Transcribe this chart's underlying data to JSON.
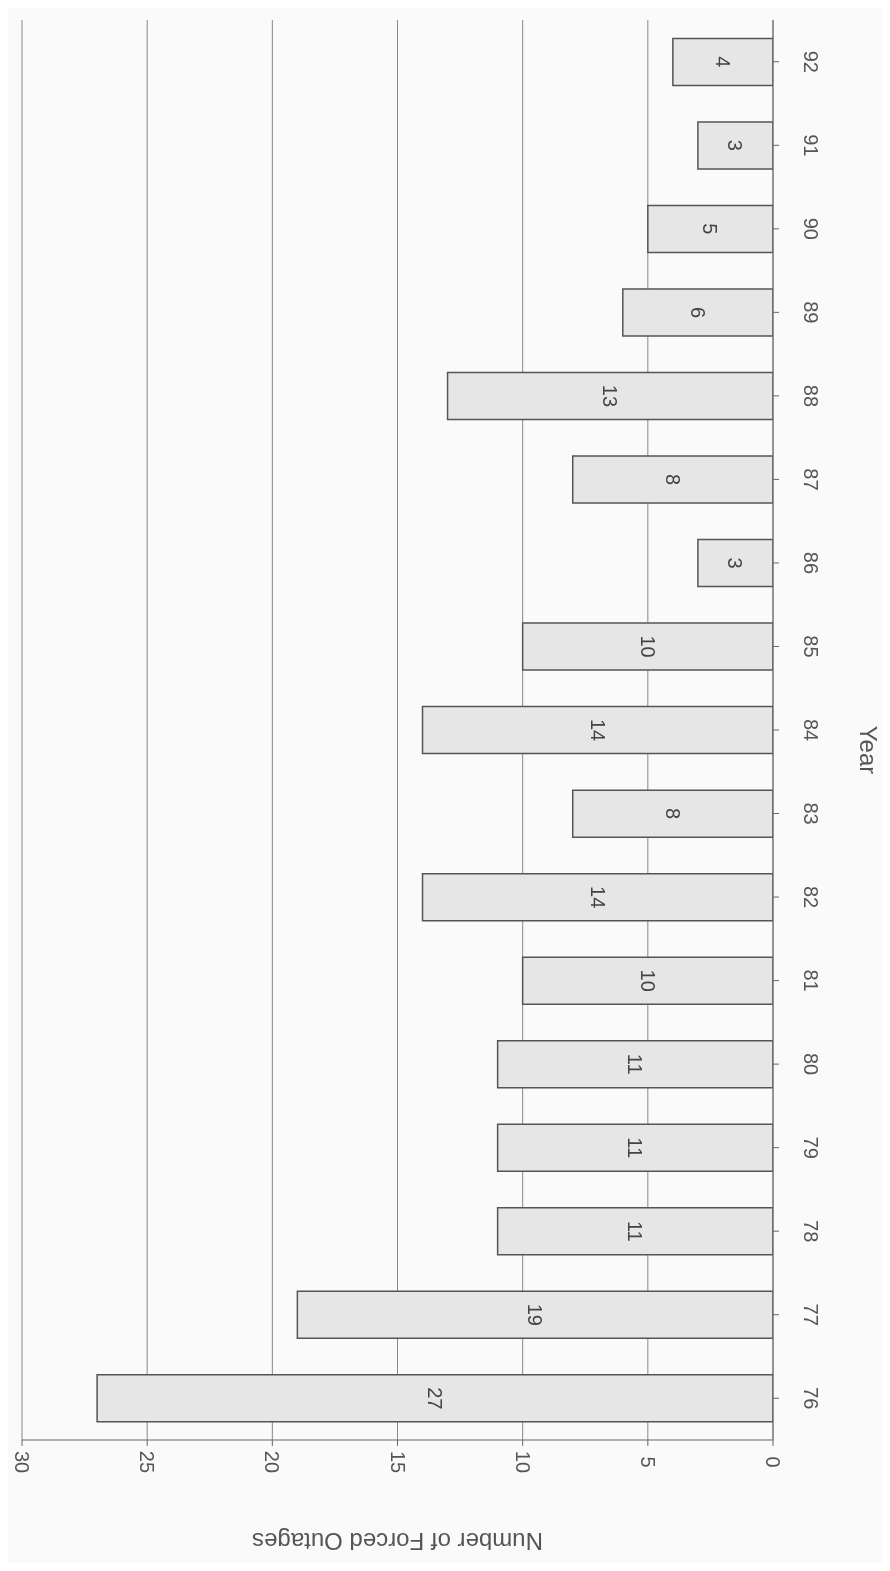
{
  "chart_data": {
    "type": "bar",
    "orientation": "horizontal",
    "xlabel": "Number of Forced Outages",
    "ylabel": "Year",
    "categories": [
      "92",
      "91",
      "90",
      "89",
      "88",
      "87",
      "86",
      "85",
      "84",
      "83",
      "82",
      "81",
      "80",
      "79",
      "78",
      "77",
      "76"
    ],
    "values": [
      4,
      3,
      5,
      6,
      13,
      8,
      3,
      10,
      14,
      8,
      14,
      10,
      11,
      11,
      11,
      19,
      27
    ],
    "color": "#e6e6e6",
    "xlim": [
      30,
      0
    ],
    "xticks": [
      0,
      5,
      10,
      15,
      20,
      25,
      30
    ],
    "grid": "x",
    "data_labels": true
  }
}
